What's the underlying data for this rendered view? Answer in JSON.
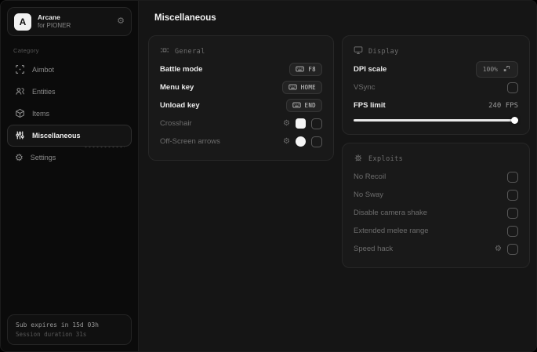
{
  "colors": {
    "accent": "#f5f5f5",
    "panel_bg": "#191919",
    "sidebar_bg": "#0b0b0b",
    "text_muted": "#6d6d6d"
  },
  "sidebar": {
    "app": {
      "logo_letter": "A",
      "name": "Arcane",
      "subtitle": "for PIONER",
      "gear_icon": "gear-icon"
    },
    "category_label": "Category",
    "items": [
      {
        "label": "Aimbot",
        "icon": "crosshair-icon",
        "active": false
      },
      {
        "label": "Entities",
        "icon": "entities-icon",
        "active": false
      },
      {
        "label": "Items",
        "icon": "cube-icon",
        "active": false
      },
      {
        "label": "Miscellaneous",
        "icon": "sliders-icon",
        "active": true
      },
      {
        "label": "Settings",
        "icon": "gear-icon",
        "active": false
      }
    ],
    "footer": {
      "line1": "Sub expires in 15d 03h",
      "line2": "Session duration 31s"
    }
  },
  "main": {
    "title": "Miscellaneous",
    "general": {
      "title": "General",
      "icon": "grid-icon",
      "rows": [
        {
          "label": "Battle mode",
          "keybind": "F8"
        },
        {
          "label": "Menu key",
          "keybind": "HOME"
        },
        {
          "label": "Unload key",
          "keybind": "END"
        },
        {
          "label": "Crosshair",
          "checked": false,
          "swatch": "#f5f5f5",
          "has_settings": true
        },
        {
          "label": "Off-Screen arrows",
          "checked": false,
          "swatch": "#f5f5f5",
          "has_settings": true
        }
      ]
    },
    "display": {
      "title": "Display",
      "icon": "monitor-icon",
      "rows": [
        {
          "label": "DPI scale",
          "value": "100%"
        },
        {
          "label": "VSync",
          "checked": false
        },
        {
          "label": "FPS limit",
          "value": "240 FPS",
          "slider_percent": 100
        }
      ]
    },
    "exploits": {
      "title": "Exploits",
      "icon": "bug-icon",
      "rows": [
        {
          "label": "No Recoil",
          "checked": false
        },
        {
          "label": "No Sway",
          "checked": false
        },
        {
          "label": "Disable camera shake",
          "checked": false
        },
        {
          "label": "Extended melee range",
          "checked": false
        },
        {
          "label": "Speed hack",
          "checked": false,
          "has_settings": true
        }
      ]
    }
  }
}
